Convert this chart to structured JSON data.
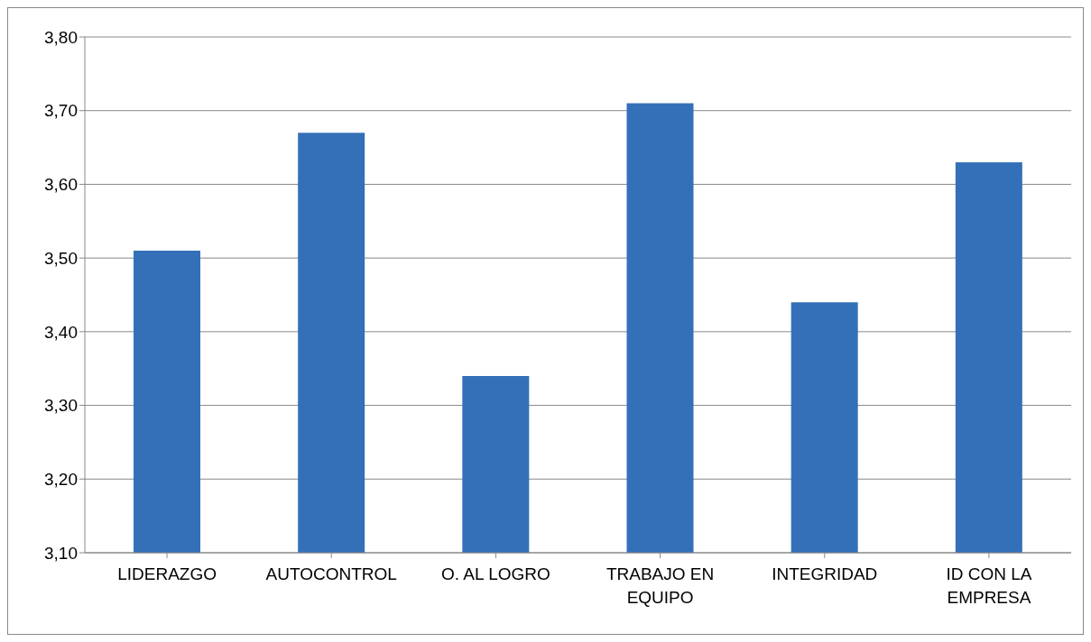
{
  "chart_data": {
    "type": "bar",
    "categories": [
      "LIDERAZGO",
      "AUTOCONTROL",
      "O. AL LOGRO",
      "TRABAJO EN EQUIPO",
      "INTEGRIDAD",
      "ID CON LA EMPRESA"
    ],
    "values": [
      3.51,
      3.67,
      3.34,
      3.71,
      3.44,
      3.63
    ],
    "color": "#3470b8",
    "ylim": [
      3.1,
      3.8
    ],
    "yticks": [
      {
        "value": 3.1,
        "label": "3,10"
      },
      {
        "value": 3.2,
        "label": "3,20"
      },
      {
        "value": 3.3,
        "label": "3,30"
      },
      {
        "value": 3.4,
        "label": "3,40"
      },
      {
        "value": 3.5,
        "label": "3,50"
      },
      {
        "value": 3.6,
        "label": "3,60"
      },
      {
        "value": 3.7,
        "label": "3,70"
      },
      {
        "value": 3.8,
        "label": "3,80"
      }
    ],
    "grid": "y",
    "legend": false
  }
}
